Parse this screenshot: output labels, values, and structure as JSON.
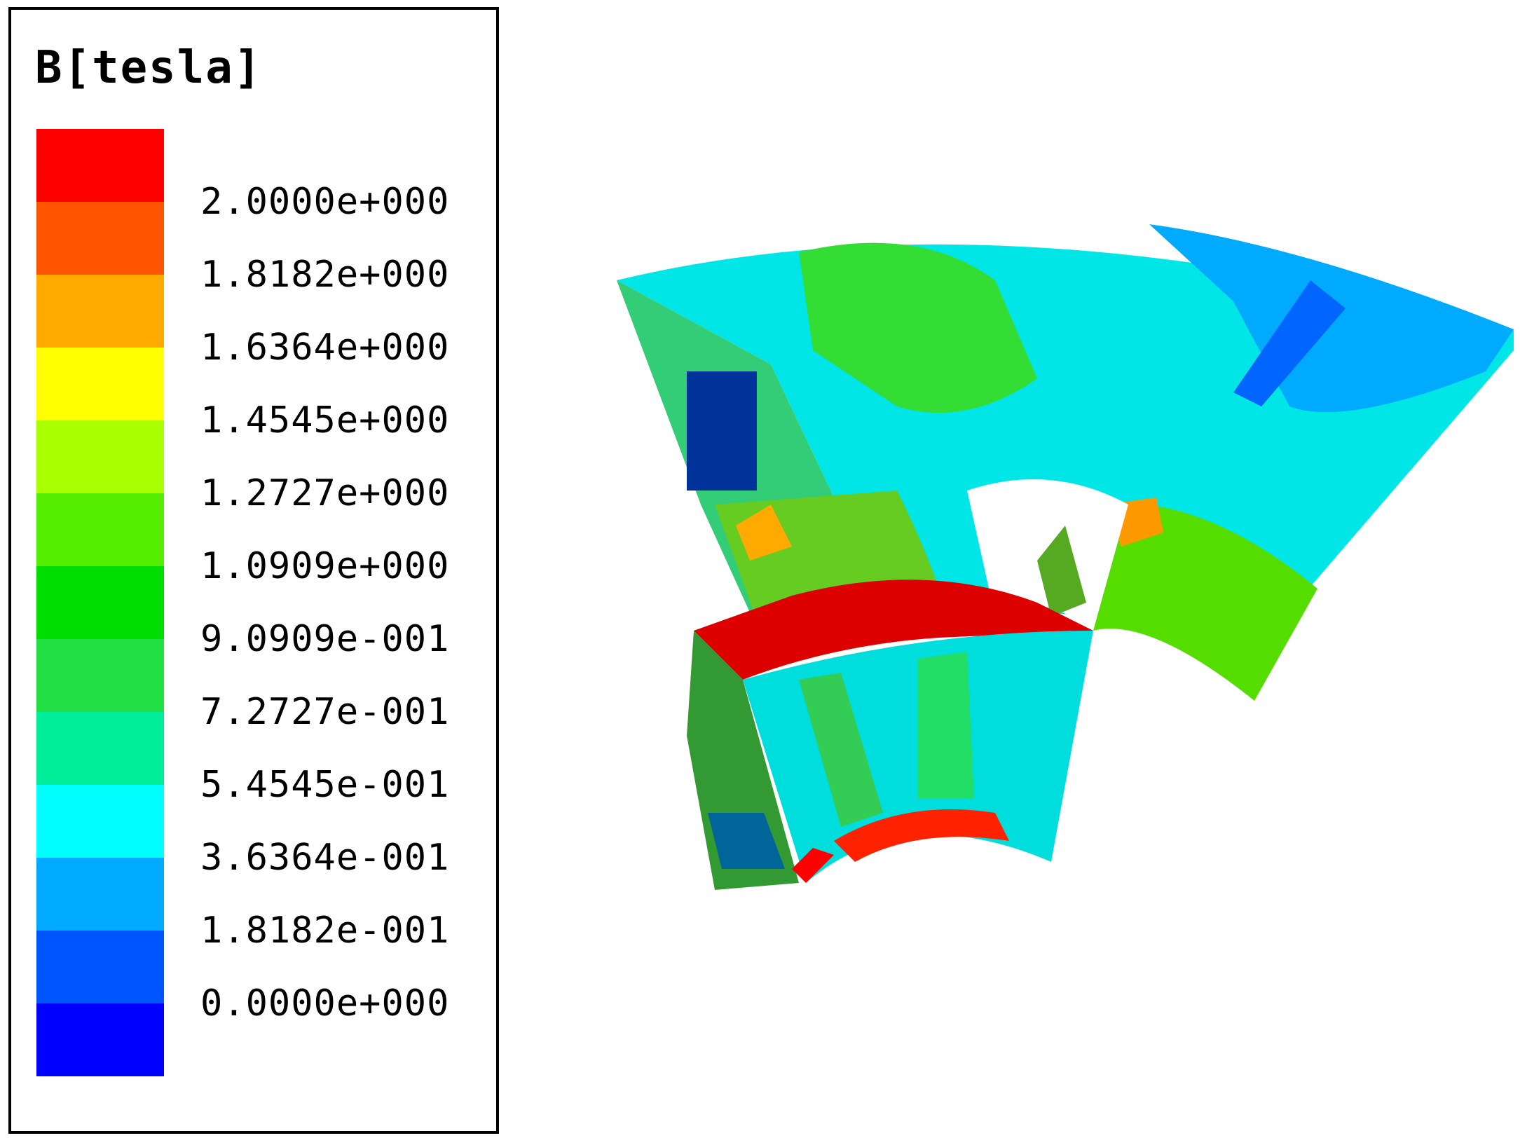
{
  "legend": {
    "title": "B[tesla]",
    "swatch_colors": [
      "#ff0000",
      "#ff5500",
      "#ffaa00",
      "#ffff00",
      "#aaff00",
      "#55ee00",
      "#00dd00",
      "#22e044",
      "#00ee99",
      "#00ffff",
      "#00aaff",
      "#0055ff",
      "#0000ff"
    ],
    "ticks": [
      "2.0000e+000",
      "1.8182e+000",
      "1.6364e+000",
      "1.4545e+000",
      "1.2727e+000",
      "1.0909e+000",
      "9.0909e-001",
      "7.2727e-001",
      "5.4545e-001",
      "3.6364e-001",
      "1.8182e-001",
      "0.0000e+000"
    ]
  }
}
